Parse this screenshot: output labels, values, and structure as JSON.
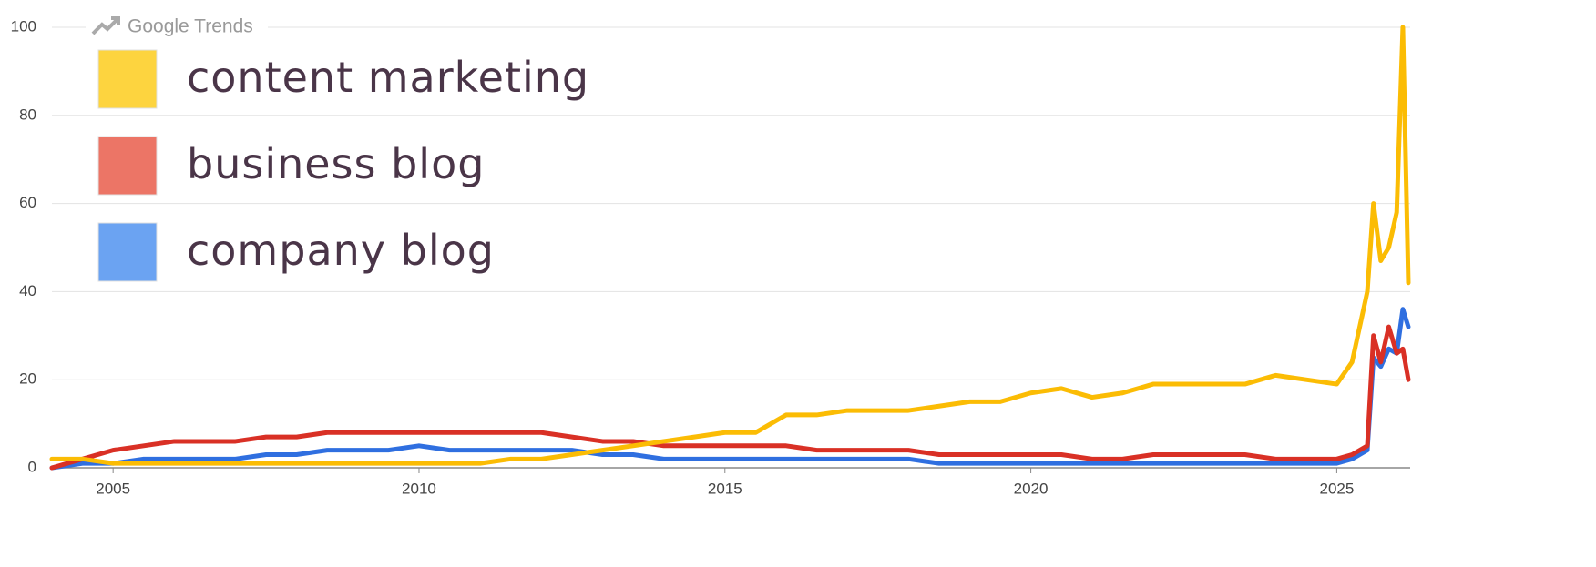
{
  "chart_data": {
    "type": "line",
    "source": "Google Trends",
    "x": [
      2004,
      2004.5,
      2005,
      2005.5,
      2006,
      2006.5,
      2007,
      2007.5,
      2008,
      2008.5,
      2009,
      2009.5,
      2010,
      2010.5,
      2011,
      2011.5,
      2012,
      2012.5,
      2013,
      2013.5,
      2014,
      2014.5,
      2015,
      2015.5,
      2016,
      2016.5,
      2017,
      2017.5,
      2018,
      2018.5,
      2019,
      2019.5,
      2020,
      2020.5,
      2021,
      2021.5,
      2022,
      2022.5,
      2023,
      2023.5,
      2024,
      2024.5,
      2025,
      2025.25,
      2025.5,
      2025.6,
      2025.72,
      2025.85,
      2025.98,
      2026.08,
      2026.17
    ],
    "series": [
      {
        "name": "content marketing",
        "color": "#fbbc04",
        "swatch_color": "#fdd43f",
        "values": [
          2,
          2,
          1,
          1,
          1,
          1,
          1,
          1,
          1,
          1,
          1,
          1,
          1,
          1,
          1,
          2,
          2,
          3,
          4,
          5,
          6,
          7,
          8,
          8,
          12,
          12,
          13,
          13,
          13,
          14,
          15,
          15,
          17,
          18,
          16,
          17,
          19,
          19,
          19,
          19,
          21,
          20,
          19,
          24,
          40,
          60,
          47,
          50,
          58,
          100,
          42
        ]
      },
      {
        "name": "business blog",
        "color": "#d93025",
        "swatch_color": "#ec7566",
        "values": [
          0,
          2,
          4,
          5,
          6,
          6,
          6,
          7,
          7,
          8,
          8,
          8,
          8,
          8,
          8,
          8,
          8,
          7,
          6,
          6,
          5,
          5,
          5,
          5,
          5,
          4,
          4,
          4,
          4,
          3,
          3,
          3,
          3,
          3,
          2,
          2,
          3,
          3,
          3,
          3,
          2,
          2,
          2,
          3,
          5,
          30,
          24,
          32,
          26,
          27,
          20
        ]
      },
      {
        "name": "company blog",
        "color": "#2f6fe0",
        "swatch_color": "#6ba3f2",
        "values": [
          0,
          1,
          1,
          2,
          2,
          2,
          2,
          3,
          3,
          4,
          4,
          4,
          5,
          4,
          4,
          4,
          4,
          4,
          3,
          3,
          2,
          2,
          2,
          2,
          2,
          2,
          2,
          2,
          2,
          1,
          1,
          1,
          1,
          1,
          1,
          1,
          1,
          1,
          1,
          1,
          1,
          1,
          1,
          2,
          4,
          25,
          23,
          27,
          26,
          36,
          32
        ]
      }
    ],
    "xlim": [
      2004,
      2026.2
    ],
    "xticks": [
      2005,
      2010,
      2015,
      2020,
      2025
    ],
    "ylim": [
      0,
      100
    ],
    "yticks": [
      0,
      20,
      40,
      60,
      80,
      100
    ],
    "grid": true
  }
}
